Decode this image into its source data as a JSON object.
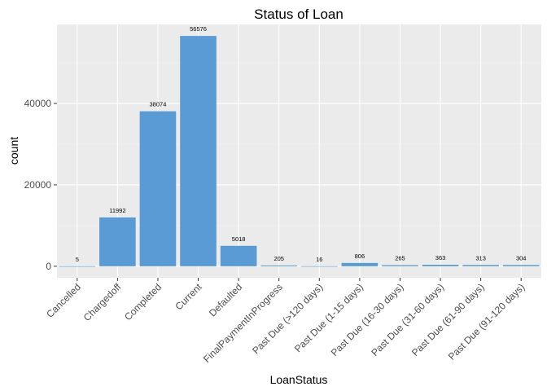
{
  "chart_data": {
    "type": "bar",
    "title": "Status of Loan",
    "xlabel": "LoanStatus",
    "ylabel": "count",
    "categories": [
      "Cancelled",
      "Chargedoff",
      "Completed",
      "Current",
      "Defaulted",
      "FinalPaymentInProgress",
      "Past Due (>120 days)",
      "Past Due (1-15 days)",
      "Past Due (16-30 days)",
      "Past Due (31-60 days)",
      "Past Due (61-90 days)",
      "Past Due (91-120 days)"
    ],
    "values": [
      5,
      11992,
      38074,
      56576,
      5018,
      205,
      16,
      806,
      265,
      363,
      313,
      304
    ],
    "data_labels": [
      "5",
      "11992",
      "38074",
      "56576",
      "5018",
      "205",
      "16",
      "806",
      "265",
      "363",
      "313",
      "304"
    ],
    "yticks": [
      0,
      20000,
      40000
    ],
    "ytick_labels": [
      "0",
      "20000",
      "40000"
    ],
    "ylim": [
      -2829,
      59405
    ],
    "grid": true,
    "legend": "none",
    "colors": {
      "bar": "#5b9bd5",
      "panel_background": "#ebebeb",
      "grid_major": "#ffffff",
      "grid_minor": "#f5f5f5",
      "tick_text": "#4d4d4d",
      "title_text": "#000000"
    }
  }
}
